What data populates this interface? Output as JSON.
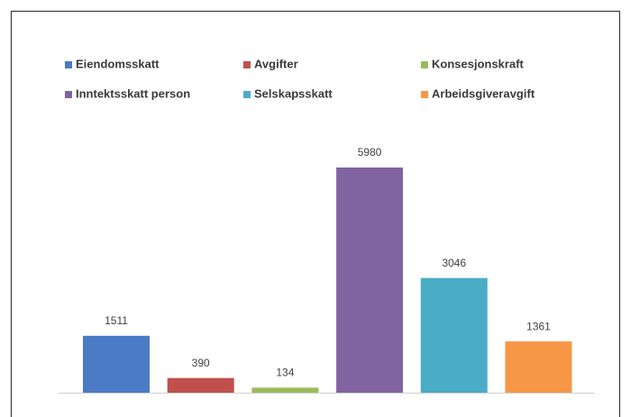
{
  "chart_data": {
    "type": "bar",
    "series": [
      {
        "name": "Eiendomsskatt",
        "color": "#4a7bc4",
        "values": [
          1511
        ]
      },
      {
        "name": "Avgifter",
        "color": "#c0504d",
        "values": [
          390
        ]
      },
      {
        "name": "Konsesjonskraft",
        "color": "#9bbb59",
        "values": [
          134
        ]
      },
      {
        "name": "Inntektsskatt person",
        "color": "#8064a2",
        "values": [
          5980
        ]
      },
      {
        "name": "Selskapsskatt",
        "color": "#4bacc6",
        "values": [
          3046
        ]
      },
      {
        "name": "Arbeidsgiveravgift",
        "color": "#f79646",
        "values": [
          1361
        ]
      }
    ],
    "legend": "top"
  }
}
